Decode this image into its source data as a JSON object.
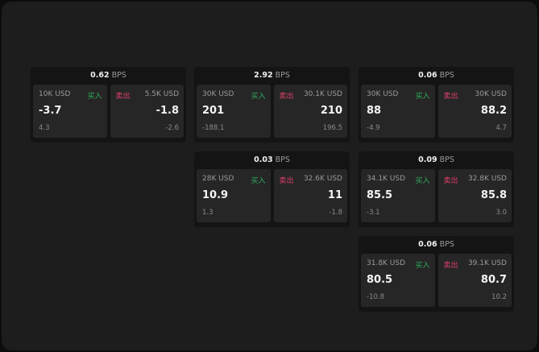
{
  "buy_label": "买入",
  "sell_label": "卖出",
  "unit": "BPS",
  "colors": {
    "buy": "#2fae5c",
    "sell": "#e0406a"
  },
  "groups": [
    {
      "bps": "0.62",
      "buy": {
        "amount": "10K USD",
        "price": "-3.7",
        "change": "4.3"
      },
      "sell": {
        "amount": "5.5K USD",
        "price": "-1.8",
        "change": "-2.6"
      }
    },
    {
      "bps": "2.92",
      "buy": {
        "amount": "30K USD",
        "price": "201",
        "change": "-188.1"
      },
      "sell": {
        "amount": "30.1K USD",
        "price": "210",
        "change": "196.5"
      }
    },
    {
      "bps": "0.06",
      "buy": {
        "amount": "30K USD",
        "price": "88",
        "change": "-4.9"
      },
      "sell": {
        "amount": "30K USD",
        "price": "88.2",
        "change": "4.7"
      }
    },
    {
      "bps": "0.03",
      "buy": {
        "amount": "28K USD",
        "price": "10.9",
        "change": "1.3"
      },
      "sell": {
        "amount": "32.6K USD",
        "price": "11",
        "change": "-1.8"
      }
    },
    {
      "bps": "0.09",
      "buy": {
        "amount": "34.1K USD",
        "price": "85.5",
        "change": "-3.1"
      },
      "sell": {
        "amount": "32.8K USD",
        "price": "85.8",
        "change": "3.0"
      }
    },
    {
      "bps": "0.06",
      "buy": {
        "amount": "31.8K USD",
        "price": "80.5",
        "change": "-10.8"
      },
      "sell": {
        "amount": "39.1K USD",
        "price": "80.7",
        "change": "10.2"
      }
    }
  ]
}
